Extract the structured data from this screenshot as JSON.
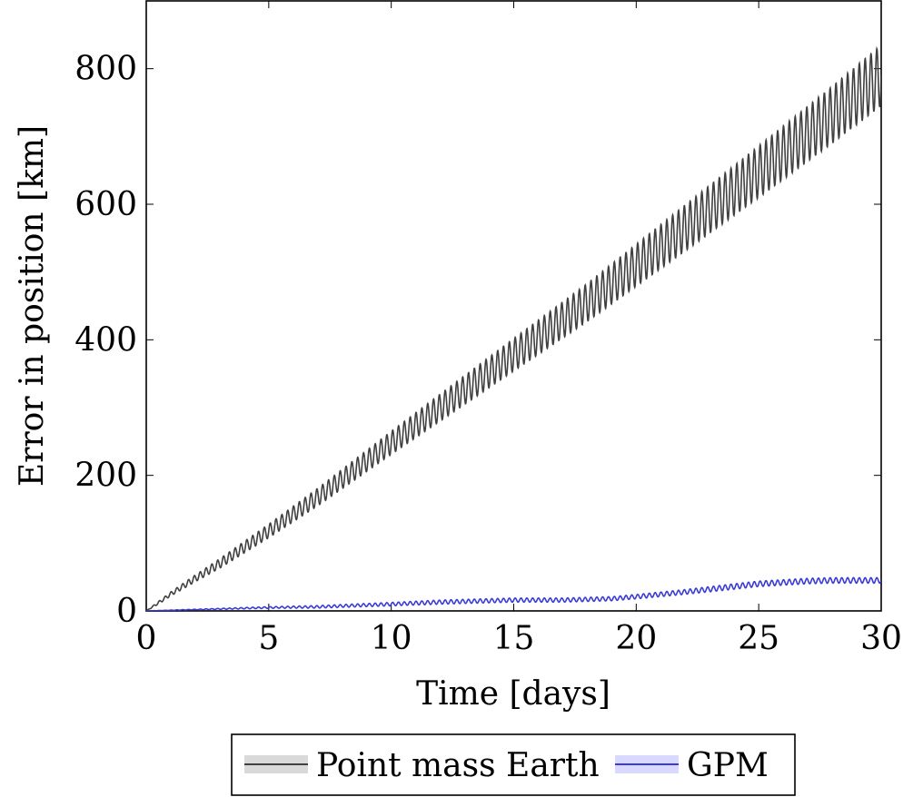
{
  "chart_data": {
    "type": "line",
    "title": "",
    "xlabel": "Time [days]",
    "ylabel": "Error in position [km]",
    "xlim": [
      0,
      30
    ],
    "ylim": [
      0,
      900
    ],
    "xticks": [
      0,
      5,
      10,
      15,
      20,
      25,
      30
    ],
    "yticks": [
      0,
      200,
      400,
      600,
      800
    ],
    "grid": false,
    "legend_position": "bottom-center",
    "oscillation_cycles_per_day": 4.2,
    "series": [
      {
        "name": "Point mass Earth",
        "color": "#404040",
        "band_color": "#d9d9d9",
        "x": [
          0,
          0.5,
          1,
          2,
          3,
          5,
          7,
          10,
          12,
          15,
          18,
          20,
          22,
          25,
          28,
          30
        ],
        "y": [
          0,
          12,
          25,
          48,
          70,
          118,
          168,
          248,
          300,
          378,
          455,
          510,
          565,
          648,
          732,
          790
        ],
        "oscillation_amplitude": [
          0,
          2,
          3,
          5,
          7,
          10,
          13,
          17,
          20,
          24,
          28,
          31,
          34,
          38,
          42,
          45
        ]
      },
      {
        "name": "GPM",
        "color": "#3a3ad6",
        "band_color": "#d9d9ff",
        "x": [
          0,
          2,
          4,
          5,
          7,
          10,
          12,
          15,
          17,
          19,
          20,
          22,
          24,
          25,
          27,
          28,
          30
        ],
        "y": [
          0,
          2,
          4,
          5,
          6,
          10,
          13,
          16,
          16,
          18,
          21,
          28,
          36,
          40,
          44,
          45,
          45
        ],
        "oscillation_amplitude": [
          0,
          0.5,
          1,
          1.2,
          1.8,
          2.5,
          3,
          3,
          3,
          3,
          3.2,
          3.5,
          4,
          4,
          4,
          4,
          4
        ]
      }
    ]
  }
}
